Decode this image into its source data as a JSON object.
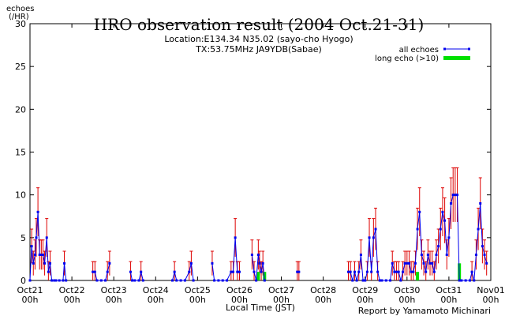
{
  "title": "HRO observation result (2004 Oct.21-31)",
  "subtitle_location": "Location:E134.34 N35.02 (sayo-cho Hyogo)",
  "subtitle_tx": "TX:53.75MHz JA9YDB(Sabae)",
  "ylabel_line1": "echoes",
  "ylabel_line2": "(/HR)",
  "xlabel": "Local Time (JST)",
  "credit": "Report by Yamamoto Michinari",
  "colors": {
    "all": "#0000ee",
    "long": "#00e000",
    "errorbar": "#dd0000",
    "frame": "#000000"
  },
  "chart_data": {
    "type": "line",
    "title": "HRO observation result (2004 Oct.21-31)",
    "xlabel": "Local Time (JST)",
    "ylabel": "echoes (/HR)",
    "ylim": [
      0,
      30
    ],
    "yticks": [
      0,
      5,
      10,
      15,
      20,
      25,
      30
    ],
    "xlim_days": [
      0,
      11
    ],
    "xticks": [
      {
        "line1": "Oct21",
        "line2": "00h"
      },
      {
        "line1": "Oct22",
        "line2": "00h"
      },
      {
        "line1": "Oct23",
        "line2": "00h"
      },
      {
        "line1": "Oct24",
        "line2": "00h"
      },
      {
        "line1": "Oct25",
        "line2": "00h"
      },
      {
        "line1": "Oct26",
        "line2": "00h"
      },
      {
        "line1": "Oct27",
        "line2": "00h"
      },
      {
        "line1": "Oct28",
        "line2": "00h"
      },
      {
        "line1": "Oct29",
        "line2": "00h"
      },
      {
        "line1": "Oct30",
        "line2": "00h"
      },
      {
        "line1": "Oct31",
        "line2": "00h"
      },
      {
        "line1": "Nov01",
        "line2": "00h"
      }
    ],
    "grid": false,
    "legend_position": "top-right",
    "series": [
      {
        "name": "all echoes",
        "style": "line-markers",
        "data": [
          [
            0.0,
            0
          ],
          [
            0.04,
            4
          ],
          [
            0.08,
            2
          ],
          [
            0.12,
            3
          ],
          [
            0.15,
            5
          ],
          [
            0.19,
            8
          ],
          [
            0.23,
            3
          ],
          [
            0.27,
            3
          ],
          [
            0.31,
            3
          ],
          [
            0.35,
            2
          ],
          [
            0.4,
            5
          ],
          [
            0.44,
            1
          ],
          [
            0.48,
            2
          ],
          [
            0.52,
            0
          ],
          [
            0.58,
            0
          ],
          [
            0.62,
            0
          ],
          [
            0.7,
            0
          ],
          [
            0.79,
            0
          ],
          [
            0.82,
            2
          ],
          [
            0.86,
            0
          ],
          [
            1.5,
            1
          ],
          [
            1.55,
            1
          ],
          [
            1.6,
            0
          ],
          [
            1.7,
            0
          ],
          [
            1.8,
            0
          ],
          [
            1.85,
            1
          ],
          [
            1.9,
            2
          ],
          [
            2.4,
            1
          ],
          [
            2.44,
            0
          ],
          [
            2.5,
            0
          ],
          [
            2.6,
            0
          ],
          [
            2.65,
            1
          ],
          [
            2.7,
            0
          ],
          [
            3.4,
            0
          ],
          [
            3.45,
            1
          ],
          [
            3.5,
            0
          ],
          [
            3.6,
            0
          ],
          [
            3.7,
            0
          ],
          [
            3.8,
            1
          ],
          [
            3.85,
            2
          ],
          [
            3.9,
            0
          ],
          [
            4.35,
            2
          ],
          [
            4.4,
            0
          ],
          [
            4.5,
            0
          ],
          [
            4.6,
            0
          ],
          [
            4.7,
            0
          ],
          [
            4.8,
            1
          ],
          [
            4.85,
            1
          ],
          [
            4.9,
            5
          ],
          [
            4.95,
            1
          ],
          [
            5.0,
            1
          ],
          [
            5.3,
            3
          ],
          [
            5.35,
            1
          ],
          [
            5.4,
            0
          ],
          [
            5.45,
            3
          ],
          [
            5.48,
            2
          ],
          [
            5.52,
            1
          ],
          [
            5.56,
            2
          ],
          [
            5.6,
            0
          ],
          [
            6.38,
            1
          ],
          [
            6.42,
            1
          ],
          [
            7.6,
            1
          ],
          [
            7.65,
            1
          ],
          [
            7.7,
            0
          ],
          [
            7.75,
            1
          ],
          [
            7.8,
            0
          ],
          [
            7.85,
            1
          ],
          [
            7.9,
            3
          ],
          [
            7.95,
            0
          ],
          [
            8.0,
            0
          ],
          [
            8.05,
            1
          ],
          [
            8.1,
            5
          ],
          [
            8.15,
            1
          ],
          [
            8.2,
            5
          ],
          [
            8.25,
            6
          ],
          [
            8.3,
            1
          ],
          [
            8.35,
            0
          ],
          [
            8.4,
            0
          ],
          [
            8.5,
            0
          ],
          [
            8.6,
            0
          ],
          [
            8.65,
            2
          ],
          [
            8.7,
            1
          ],
          [
            8.75,
            1
          ],
          [
            8.8,
            1
          ],
          [
            8.85,
            0
          ],
          [
            8.9,
            1
          ],
          [
            8.95,
            2
          ],
          [
            9.0,
            2
          ],
          [
            9.05,
            2
          ],
          [
            9.1,
            1
          ],
          [
            9.15,
            1
          ],
          [
            9.2,
            2
          ],
          [
            9.25,
            6
          ],
          [
            9.3,
            8
          ],
          [
            9.35,
            3
          ],
          [
            9.4,
            2
          ],
          [
            9.45,
            1
          ],
          [
            9.5,
            3
          ],
          [
            9.55,
            2
          ],
          [
            9.6,
            2
          ],
          [
            9.65,
            1
          ],
          [
            9.7,
            3
          ],
          [
            9.75,
            4
          ],
          [
            9.8,
            6
          ],
          [
            9.85,
            8
          ],
          [
            9.9,
            7
          ],
          [
            9.95,
            3
          ],
          [
            10.0,
            5
          ],
          [
            10.05,
            9
          ],
          [
            10.1,
            10
          ],
          [
            10.15,
            10
          ],
          [
            10.2,
            10
          ],
          [
            10.25,
            0
          ],
          [
            10.3,
            0
          ],
          [
            10.4,
            0
          ],
          [
            10.5,
            0
          ],
          [
            10.55,
            1
          ],
          [
            10.6,
            0
          ],
          [
            10.65,
            3
          ],
          [
            10.7,
            6
          ],
          [
            10.75,
            9
          ],
          [
            10.8,
            4
          ],
          [
            10.85,
            3
          ],
          [
            10.9,
            2
          ]
        ]
      },
      {
        "name": "long echo (>10)",
        "style": "bars",
        "data": [
          [
            5.45,
            1
          ],
          [
            5.6,
            1
          ],
          [
            9.25,
            1
          ],
          [
            10.25,
            2
          ]
        ]
      }
    ],
    "errorbars_note": "Red vertical error bars drawn on the all-echoes series"
  }
}
